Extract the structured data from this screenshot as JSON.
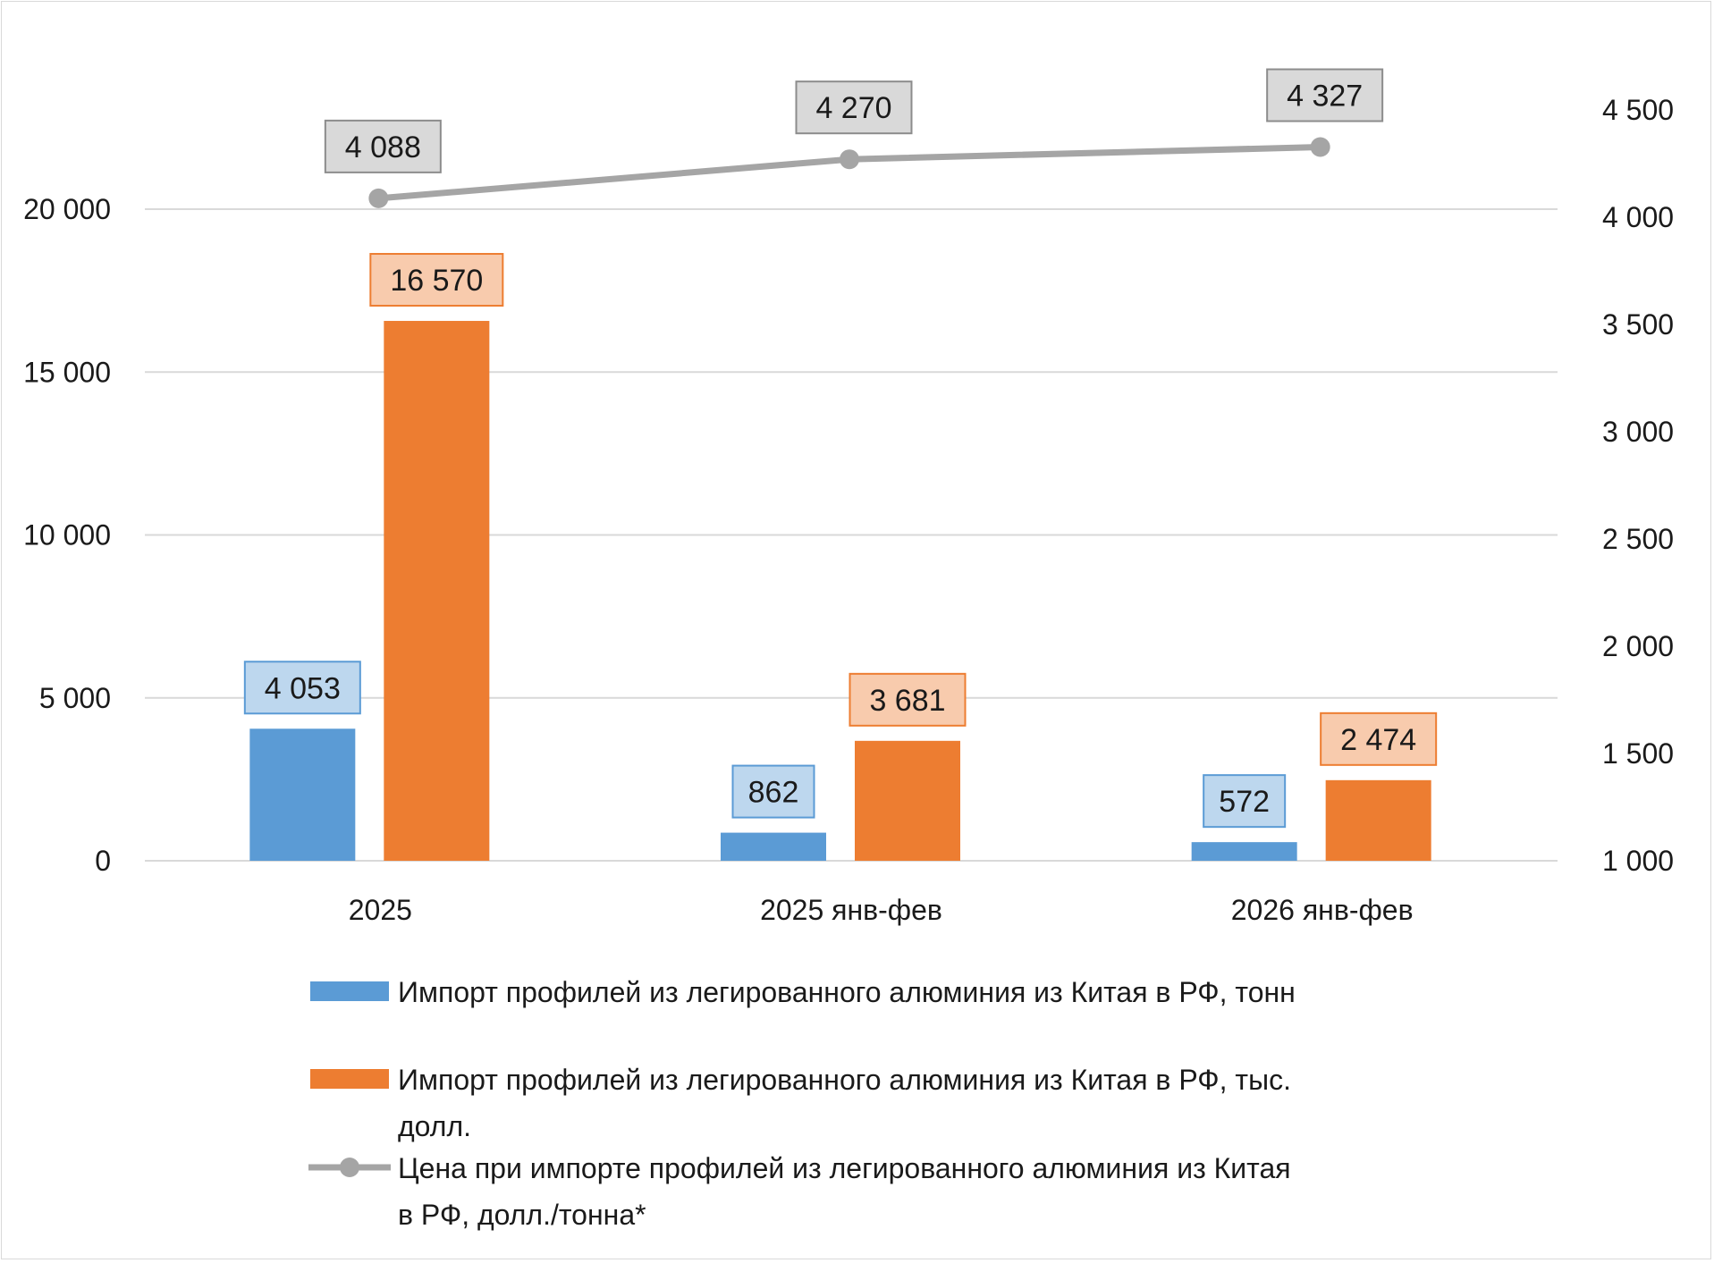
{
  "chart_data": {
    "type": "bar",
    "categories": [
      "2025",
      "2025 янв-фев",
      "2026 янв-фев"
    ],
    "series": [
      {
        "name": "Импорт профилей из легированного алюминия из Китая в РФ, тонн",
        "type": "bar",
        "axis": "left",
        "color": "#5b9bd5",
        "label_fill": "#bdd7ee",
        "values": [
          4053,
          862,
          572
        ],
        "labels": [
          "4 053",
          "862",
          "572"
        ]
      },
      {
        "name": "Импорт профилей из легированного алюминия из Китая в РФ, тыс. долл.",
        "type": "bar",
        "axis": "left",
        "color": "#ed7d31",
        "label_fill": "#f8cbad",
        "values": [
          16570,
          3681,
          2474
        ],
        "labels": [
          "16 570",
          "3 681",
          "2 474"
        ]
      },
      {
        "name": "Цена при импорте профилей из легированного алюминия из Китая в РФ, долл./тонна*",
        "type": "line",
        "axis": "right",
        "color": "#a5a5a5",
        "label_fill": "#d9d9d9",
        "values": [
          4088,
          4270,
          4327
        ],
        "labels": [
          "4 088",
          "4 270",
          "4 327"
        ]
      }
    ],
    "left_axis": {
      "ylim": [
        0,
        20000
      ],
      "ticks": [
        0,
        5000,
        10000,
        15000,
        20000
      ],
      "tick_labels": [
        "0",
        "5 000",
        "10 000",
        "15 000",
        "20 000"
      ]
    },
    "right_axis": {
      "ylim": [
        1000,
        4500
      ],
      "ticks": [
        1000,
        1500,
        2000,
        2500,
        3000,
        3500,
        4000,
        4500
      ],
      "tick_labels": [
        "1 000",
        "1 500",
        "2 000",
        "2 500",
        "3 000",
        "3 500",
        "4 000",
        "4 500"
      ]
    },
    "grid": true,
    "legend_position": "bottom",
    "legend": [
      {
        "lines": [
          "Импорт профилей из легированного алюминия из Китая в РФ, тонн"
        ]
      },
      {
        "lines": [
          "Импорт профилей из легированного алюминия из Китая в РФ, тыс.",
          "долл."
        ]
      },
      {
        "lines": [
          "Цена при импорте профилей из легированного алюминия из Китая",
          "в РФ, долл./тонна*"
        ]
      }
    ]
  }
}
